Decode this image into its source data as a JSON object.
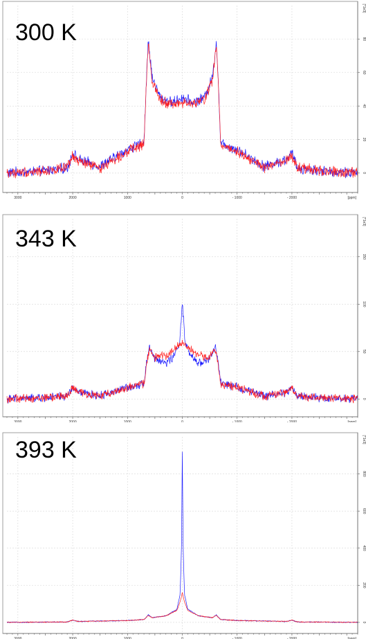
{
  "chart_data": [
    {
      "type": "line",
      "panel_label": "300 K",
      "x_unit_label": "[ppm]",
      "y_unit_label": "[*1e3]",
      "xlim": [
        3200,
        -3200
      ],
      "ylim": [
        -5,
        100
      ],
      "x_ticks": [
        3000,
        2000,
        1000,
        0,
        -1000,
        -2000
      ],
      "x_tick_labels": [
        "3000",
        "2000",
        "1000",
        "0",
        "- 1000",
        "- 2000"
      ],
      "y_ticks": [
        0,
        20,
        40,
        60,
        80
      ],
      "y_tick_labels": [
        "0",
        "20",
        "40",
        "60",
        "80"
      ],
      "grid": true,
      "series": [
        {
          "color": "#1a1aff",
          "x": [
            3200,
            2600,
            2100,
            2000,
            1900,
            1500,
            1300,
            1000,
            700,
            650,
            620,
            550,
            400,
            200,
            0,
            -200,
            -400,
            -550,
            -620,
            -650,
            -700,
            -1000,
            -1300,
            -1500,
            -1900,
            -2000,
            -2100,
            -2600,
            -3200
          ],
          "y": [
            0,
            1,
            3,
            12,
            8,
            4,
            8,
            14,
            18,
            60,
            79,
            57,
            45,
            42,
            45,
            42,
            45,
            57,
            79,
            60,
            18,
            14,
            8,
            4,
            8,
            12,
            3,
            1,
            0
          ],
          "noise": 2.5
        },
        {
          "color": "#ff2020",
          "x": [
            3200,
            2600,
            2100,
            2000,
            1900,
            1500,
            1300,
            1000,
            700,
            650,
            620,
            550,
            400,
            200,
            0,
            -200,
            -400,
            -550,
            -620,
            -650,
            -700,
            -1000,
            -1300,
            -1500,
            -1900,
            -2000,
            -2100,
            -2600,
            -3200
          ],
          "y": [
            0,
            1,
            3,
            10,
            7,
            3,
            7,
            13,
            17,
            58,
            77,
            55,
            44,
            41,
            42,
            41,
            44,
            55,
            77,
            58,
            17,
            13,
            7,
            3,
            7,
            10,
            3,
            1,
            0
          ],
          "noise": 2.5
        }
      ]
    },
    {
      "type": "line",
      "panel_label": "343 K",
      "x_unit_label": "[ppm]",
      "y_unit_label": "[*1e3]",
      "xlim": [
        3200,
        -3200
      ],
      "ylim": [
        -10,
        190
      ],
      "x_ticks": [
        3000,
        2000,
        1000,
        0,
        -1000,
        -2000
      ],
      "x_tick_labels": [
        "3000",
        "2000",
        "1000",
        "0",
        "- 1000",
        "- 2000"
      ],
      "y_ticks": [
        0,
        50,
        100,
        150
      ],
      "y_tick_labels": [
        "0",
        "50",
        "100",
        "150"
      ],
      "grid": true,
      "series": [
        {
          "color": "#1a1aff",
          "x": [
            3200,
            2600,
            2100,
            2000,
            1900,
            1500,
            1300,
            1000,
            700,
            650,
            600,
            500,
            300,
            150,
            50,
            0,
            -50,
            -150,
            -300,
            -500,
            -600,
            -650,
            -700,
            -1000,
            -1300,
            -1500,
            -1900,
            -2000,
            -2100,
            -2600,
            -3200
          ],
          "y": [
            0,
            1,
            3,
            12,
            7,
            3,
            7,
            12,
            17,
            40,
            55,
            42,
            38,
            45,
            60,
            100,
            60,
            45,
            38,
            42,
            55,
            40,
            17,
            12,
            7,
            3,
            7,
            12,
            3,
            1,
            0
          ],
          "noise": 3.5
        },
        {
          "color": "#ff2020",
          "x": [
            3200,
            2600,
            2100,
            2000,
            1900,
            1500,
            1300,
            1000,
            700,
            650,
            600,
            500,
            300,
            150,
            50,
            0,
            -50,
            -150,
            -300,
            -500,
            -600,
            -650,
            -700,
            -1000,
            -1300,
            -1500,
            -1900,
            -2000,
            -2100,
            -2600,
            -3200
          ],
          "y": [
            0,
            1,
            3,
            12,
            7,
            3,
            7,
            12,
            16,
            38,
            52,
            44,
            46,
            52,
            57,
            60,
            57,
            52,
            46,
            44,
            52,
            38,
            16,
            12,
            7,
            3,
            7,
            12,
            3,
            1,
            0
          ],
          "noise": 3.5
        }
      ]
    },
    {
      "type": "line",
      "panel_label": "393 K",
      "x_unit_label": "[ppm]",
      "y_unit_label": "[*1e3]",
      "xlim": [
        3200,
        -3200
      ],
      "ylim": [
        -30,
        1000
      ],
      "x_ticks": [
        3000,
        2000,
        1000,
        0,
        -1000,
        -2000
      ],
      "x_tick_labels": [
        "3000",
        "2000",
        "1000",
        "0",
        "- 1000",
        "- 2000"
      ],
      "y_ticks": [
        0,
        200,
        400,
        600,
        800
      ],
      "y_tick_labels": [
        "0",
        "200",
        "400",
        "600",
        "800"
      ],
      "grid": true,
      "series": [
        {
          "color": "#1a1aff",
          "x": [
            3200,
            2100,
            2000,
            1900,
            1000,
            700,
            620,
            550,
            300,
            100,
            40,
            15,
            0,
            -15,
            -40,
            -100,
            -300,
            -550,
            -620,
            -700,
            -1000,
            -1900,
            -2000,
            -2100,
            -3200
          ],
          "y": [
            0,
            2,
            12,
            5,
            10,
            15,
            40,
            25,
            35,
            70,
            150,
            400,
            920,
            400,
            150,
            70,
            35,
            25,
            40,
            15,
            10,
            5,
            12,
            2,
            0
          ],
          "noise": 2
        },
        {
          "color": "#ff2020",
          "x": [
            3200,
            2100,
            2000,
            1900,
            1000,
            700,
            620,
            550,
            300,
            100,
            40,
            15,
            0,
            -15,
            -40,
            -100,
            -300,
            -550,
            -620,
            -700,
            -1000,
            -1900,
            -2000,
            -2100,
            -3200
          ],
          "y": [
            0,
            2,
            12,
            5,
            10,
            15,
            38,
            25,
            35,
            65,
            110,
            140,
            160,
            140,
            110,
            65,
            35,
            25,
            38,
            15,
            10,
            5,
            12,
            2,
            0
          ],
          "noise": 2
        }
      ]
    }
  ]
}
